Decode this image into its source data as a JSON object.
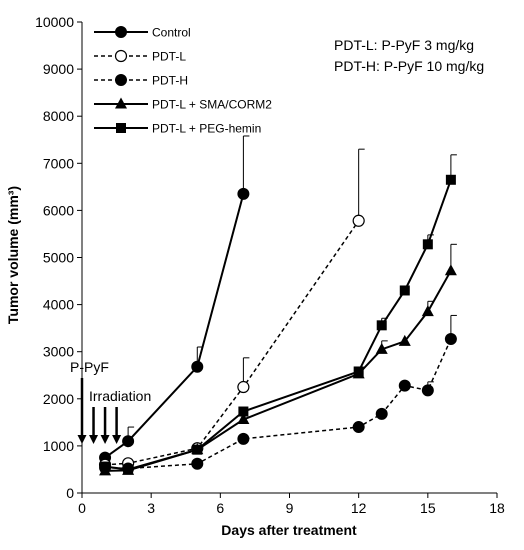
{
  "chart_data": {
    "type": "line",
    "title": "",
    "xlabel": "Days after treatment",
    "ylabel": "Tumor volume (mm³)",
    "xlim": [
      0,
      18
    ],
    "ylim": [
      0,
      10000
    ],
    "x_ticks": [
      0,
      3,
      6,
      9,
      12,
      15,
      18
    ],
    "y_ticks": [
      0,
      1000,
      2000,
      3000,
      4000,
      5000,
      6000,
      7000,
      8000,
      9000,
      10000
    ],
    "grid": false,
    "legend_position": "top-left",
    "annotations": {
      "dose_line_1": "PDT-L: P-PyF 3 mg/kg",
      "dose_line_2": "PDT-H: P-PyF 10 mg/kg",
      "ppyf_label": "P-PyF",
      "irradiation_label": "Irradiation",
      "ppyf_day": 0,
      "irradiation_days": [
        0.5,
        1,
        1.5
      ]
    },
    "series": [
      {
        "name": "Control",
        "marker": "circle-filled",
        "dashed": false,
        "x": [
          1,
          2,
          5,
          7
        ],
        "y": [
          750,
          1100,
          2680,
          6350
        ],
        "err": [
          0,
          300,
          420,
          1230
        ]
      },
      {
        "name": "PDT-L",
        "marker": "circle-open",
        "dashed": true,
        "x": [
          1,
          2,
          5,
          7,
          12
        ],
        "y": [
          600,
          630,
          950,
          2250,
          5780
        ],
        "err": [
          0,
          0,
          0,
          620,
          1520
        ]
      },
      {
        "name": "PDT-H",
        "marker": "circle-filled",
        "dashed": true,
        "x": [
          1,
          2,
          5,
          7,
          12,
          13,
          14,
          15,
          16
        ],
        "y": [
          540,
          520,
          620,
          1150,
          1400,
          1680,
          2280,
          2180,
          3270
        ],
        "err": [
          0,
          0,
          0,
          0,
          0,
          0,
          0,
          180,
          500
        ]
      },
      {
        "name": "PDT-L + SMA/CORM2",
        "marker": "triangle",
        "dashed": false,
        "x": [
          1,
          2,
          5,
          7,
          12,
          13,
          14,
          15,
          16
        ],
        "y": [
          470,
          480,
          920,
          1560,
          2530,
          3050,
          3220,
          3850,
          4720
        ],
        "err": [
          0,
          0,
          0,
          0,
          0,
          180,
          0,
          220,
          560
        ]
      },
      {
        "name": "PDT-L + PEG-hemin",
        "marker": "square",
        "dashed": false,
        "x": [
          1,
          2,
          5,
          7,
          12,
          13,
          14,
          15,
          16
        ],
        "y": [
          560,
          500,
          920,
          1730,
          2580,
          3560,
          4300,
          5280,
          6650
        ],
        "err": [
          0,
          0,
          0,
          0,
          0,
          150,
          0,
          200,
          530
        ]
      }
    ]
  }
}
